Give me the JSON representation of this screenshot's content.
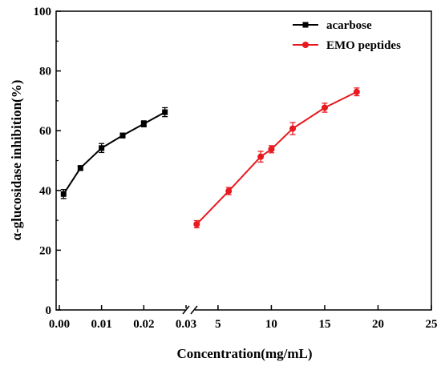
{
  "chart_data": {
    "type": "line",
    "xlabel": "Concentration(mg/mL)",
    "ylabel": "α-glucosidase inhibition(%)",
    "y_axis": {
      "range": [
        0,
        100
      ],
      "ticks": [
        "0",
        "20",
        "40",
        "60",
        "80",
        "100"
      ]
    },
    "x_axis": {
      "broken": true,
      "left_segment": {
        "range": [
          0,
          0.03
        ],
        "ticks": [
          "0.00",
          "0.01",
          "0.02",
          "0.03"
        ]
      },
      "right_segment": {
        "range": [
          2,
          25
        ],
        "ticks": [
          "5",
          "10",
          "15",
          "20",
          "25"
        ]
      }
    },
    "legend": {
      "placement": "top-right"
    },
    "series": [
      {
        "name": "acarbose",
        "color": "#000000",
        "marker": "square",
        "segment": "left",
        "x": [
          0.001,
          0.005,
          0.01,
          0.015,
          0.02,
          0.025
        ],
        "y": [
          38.8,
          47.5,
          54.2,
          58.4,
          62.3,
          66.2
        ],
        "error": [
          1.5,
          0.8,
          1.5,
          0.8,
          1.0,
          1.5
        ]
      },
      {
        "name": "EMO peptides",
        "color": "#e8191f",
        "marker": "circle",
        "segment": "right",
        "x": [
          3,
          6,
          9,
          10,
          12,
          15,
          18
        ],
        "y": [
          28.7,
          39.8,
          51.3,
          53.8,
          60.7,
          67.7,
          73.0
        ],
        "error": [
          1.2,
          1.2,
          1.8,
          1.2,
          2.0,
          1.5,
          1.3
        ]
      }
    ]
  }
}
